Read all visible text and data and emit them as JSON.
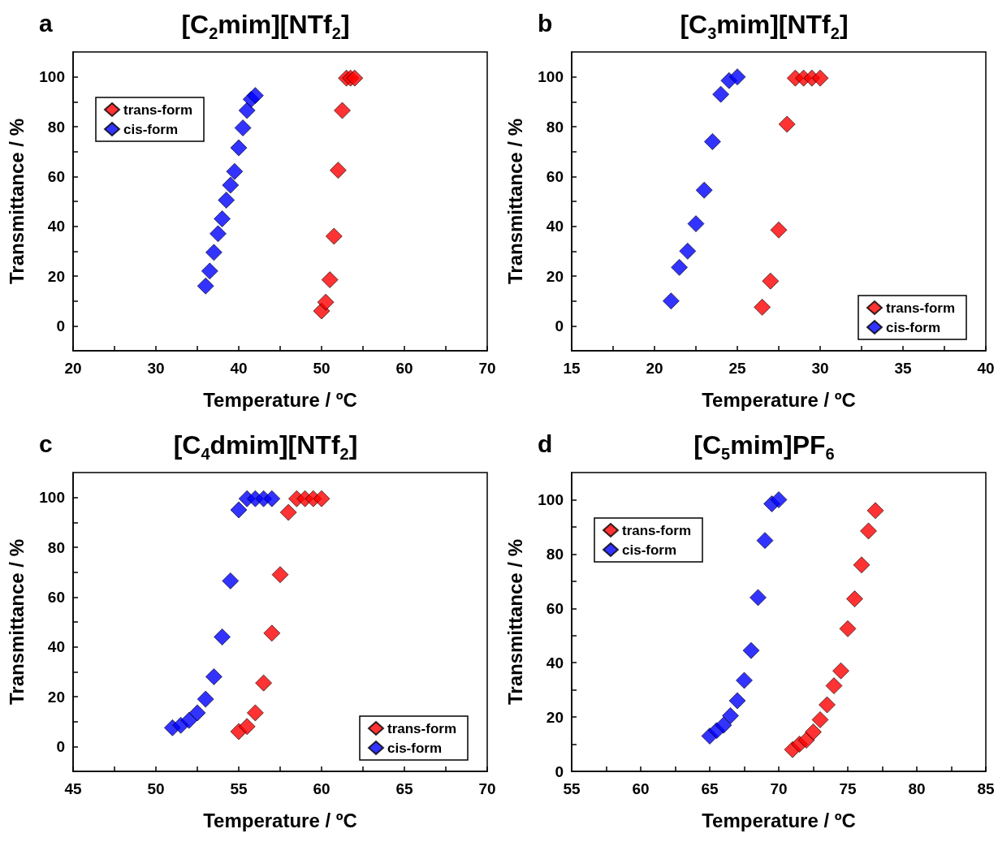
{
  "chart_data": [
    {
      "type": "scatter",
      "title": "[C$_{2}$mim][NTf$_{2}$]",
      "annotations": [
        "a"
      ],
      "xlabel": "Temperature / ºC",
      "ylabel": "Transmittance / %",
      "xlim": [
        20,
        70
      ],
      "xticks": [
        20,
        {
          "value": 25,
          "label": null
        },
        30,
        {
          "value": 35,
          "label": null
        },
        40,
        {
          "value": 45,
          "label": null
        },
        50,
        {
          "value": 55,
          "label": null
        },
        60,
        {
          "value": 65,
          "label": null
        },
        70
      ],
      "ylim": [
        -10,
        110
      ],
      "yticks": [
        0,
        {
          "value": 10,
          "label": null
        },
        20,
        {
          "value": 30,
          "label": null
        },
        40,
        {
          "value": 50,
          "label": null
        },
        60,
        {
          "value": 70,
          "label": null
        },
        80,
        {
          "value": 90,
          "label": null
        },
        100
      ],
      "marker": "diamond",
      "legend": "top left",
      "grid": false,
      "series": [
        {
          "name": "trans-form",
          "color": "#ff0000",
          "x": [
            50,
            50.5,
            51,
            51.5,
            52,
            52.5,
            53,
            53.5,
            54
          ],
          "values": [
            6,
            9.5,
            18.5,
            36,
            62.5,
            86.5,
            99.5,
            99.5,
            99.5
          ]
        },
        {
          "name": "cis-form",
          "color": "#0000ff",
          "x": [
            36,
            36.5,
            37,
            37.5,
            38,
            38.5,
            39,
            39.5,
            40,
            40.5,
            41,
            41.5,
            42
          ],
          "values": [
            16,
            22,
            29.5,
            37,
            43,
            50.5,
            56.5,
            62,
            71.5,
            79.5,
            86.5,
            91,
            92.5
          ]
        }
      ]
    },
    {
      "type": "scatter",
      "title": "[C$_{3}$mim][NTf$_{2}$]",
      "annotations": [
        "b"
      ],
      "xlabel": "Temperature / ºC",
      "ylabel": "Transmittance / %",
      "xlim": [
        15,
        40
      ],
      "xticks": [
        15,
        {
          "value": 17.5,
          "label": null
        },
        20,
        {
          "value": 22.5,
          "label": null
        },
        25,
        {
          "value": 27.5,
          "label": null
        },
        30,
        {
          "value": 32.5,
          "label": null
        },
        35,
        {
          "value": 37.5,
          "label": null
        },
        40
      ],
      "ylim": [
        -10,
        110
      ],
      "yticks": [
        0,
        {
          "value": 10,
          "label": null
        },
        20,
        {
          "value": 30,
          "label": null
        },
        40,
        {
          "value": 50,
          "label": null
        },
        60,
        {
          "value": 70,
          "label": null
        },
        80,
        {
          "value": 90,
          "label": null
        },
        100
      ],
      "marker": "diamond",
      "legend": "bottom right",
      "grid": false,
      "series": [
        {
          "name": "trans-form",
          "color": "#ff0000",
          "x": [
            26.5,
            27,
            27.5,
            28,
            28.5,
            29,
            29.5,
            30
          ],
          "values": [
            7.5,
            18,
            38.5,
            81,
            99.5,
            99.5,
            99.5,
            99.5
          ]
        },
        {
          "name": "cis-form",
          "color": "#0000ff",
          "x": [
            21,
            21.5,
            22,
            22.5,
            23,
            23.5,
            24,
            24.5,
            25
          ],
          "values": [
            10,
            23.5,
            30,
            41,
            54.5,
            74,
            93,
            98.5,
            100
          ]
        }
      ]
    },
    {
      "type": "scatter",
      "title": "[C$_{4}$dmim][NTf$_{2}$]",
      "annotations": [
        "c"
      ],
      "xlabel": "Temperature / ºC",
      "ylabel": "Transmittance / %",
      "xlim": [
        45,
        70
      ],
      "xticks": [
        45,
        {
          "value": 47.5,
          "label": null
        },
        50,
        {
          "value": 52.5,
          "label": null
        },
        55,
        {
          "value": 57.5,
          "label": null
        },
        60,
        {
          "value": 62.5,
          "label": null
        },
        65,
        {
          "value": 67.5,
          "label": null
        },
        70
      ],
      "ylim": [
        -10,
        110
      ],
      "yticks": [
        0,
        {
          "value": 10,
          "label": null
        },
        20,
        {
          "value": 30,
          "label": null
        },
        40,
        {
          "value": 50,
          "label": null
        },
        60,
        {
          "value": 70,
          "label": null
        },
        80,
        {
          "value": 90,
          "label": null
        },
        100
      ],
      "marker": "diamond",
      "legend": "bottom right",
      "grid": false,
      "series": [
        {
          "name": "trans-form",
          "color": "#ff0000",
          "x": [
            55,
            55.5,
            56,
            56.5,
            57,
            57.5,
            58,
            58.5,
            59,
            59.5,
            60
          ],
          "values": [
            6,
            8,
            13.5,
            25.5,
            45.5,
            69,
            94,
            99.5,
            99.5,
            99.5,
            99.5
          ]
        },
        {
          "name": "cis-form",
          "color": "#0000ff",
          "x": [
            51,
            51.5,
            52,
            52.5,
            53,
            53.5,
            54,
            54.5,
            55,
            55.5,
            56,
            56.5,
            57
          ],
          "values": [
            7.5,
            8.5,
            10.5,
            13.5,
            19,
            28,
            44,
            66.5,
            95,
            99.5,
            99.5,
            99.5,
            99.5
          ]
        }
      ]
    },
    {
      "type": "scatter",
      "title": "[C$_{5}$mim]PF$_{6}$",
      "annotations": [
        "d"
      ],
      "xlabel": "Temperature / ºC",
      "ylabel": "Transmittance / %",
      "xlim": [
        55,
        85
      ],
      "xticks": [
        55,
        {
          "value": 57.5,
          "label": null
        },
        60,
        {
          "value": 62.5,
          "label": null
        },
        65,
        {
          "value": 67.5,
          "label": null
        },
        70,
        {
          "value": 72.5,
          "label": null
        },
        75,
        {
          "value": 77.5,
          "label": null
        },
        80,
        {
          "value": 82.5,
          "label": null
        },
        85
      ],
      "ylim": [
        0,
        110
      ],
      "yticks": [
        0,
        {
          "value": 10,
          "label": null
        },
        20,
        {
          "value": 30,
          "label": null
        },
        40,
        {
          "value": 50,
          "label": null
        },
        60,
        {
          "value": 70,
          "label": null
        },
        80,
        {
          "value": 90,
          "label": null
        },
        100
      ],
      "marker": "diamond",
      "legend": "top left",
      "grid": false,
      "series": [
        {
          "name": "trans-form",
          "color": "#ff0000",
          "x": [
            71,
            71.5,
            72,
            72.5,
            73,
            73.5,
            74,
            74.5,
            75,
            75.5,
            76,
            76.5,
            77
          ],
          "values": [
            8,
            10,
            11.5,
            14.5,
            19,
            24.5,
            31.5,
            37,
            52.5,
            63.5,
            76,
            88.5,
            96
          ]
        },
        {
          "name": "cis-form",
          "color": "#0000ff",
          "x": [
            65,
            65.5,
            66,
            66.5,
            67,
            67.5,
            68,
            68.5,
            69,
            69.5,
            70
          ],
          "values": [
            13,
            15,
            17,
            20.5,
            26,
            33.5,
            44.5,
            64,
            85,
            98.5,
            100
          ]
        }
      ]
    }
  ]
}
